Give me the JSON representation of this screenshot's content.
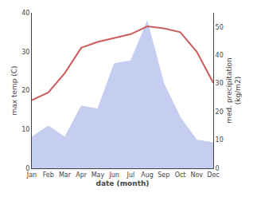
{
  "chart_data": {
    "type": "line",
    "categories": [
      "Jan",
      "Feb",
      "Mar",
      "Apr",
      "May",
      "Jun",
      "Jul",
      "Aug",
      "Sep",
      "Oct",
      "Nov",
      "Dec"
    ],
    "series": [
      {
        "type": "area",
        "color": "#c5cdf0",
        "axis": "y2",
        "values": [
          11,
          15,
          11,
          22,
          21,
          37,
          38,
          52,
          30,
          18,
          10,
          9
        ]
      },
      {
        "type": "line",
        "color": "#cd5c5c",
        "values": [
          17.5,
          19.5,
          24.5,
          31.0,
          32.5,
          33.5,
          34.5,
          36.5,
          36.0,
          35.0,
          30.0,
          22.0
        ]
      }
    ],
    "x_label": "date (month)",
    "y_label": "max temp (C)",
    "y2_label": "med. precipitation\n(kg/m2)",
    "ylim": [
      0,
      40
    ],
    "yticks": [
      0,
      10,
      20,
      30,
      40
    ],
    "y2lim": [
      0,
      55
    ],
    "y2ticks": [
      0,
      10,
      20,
      30,
      40,
      50
    ],
    "grid": false
  }
}
